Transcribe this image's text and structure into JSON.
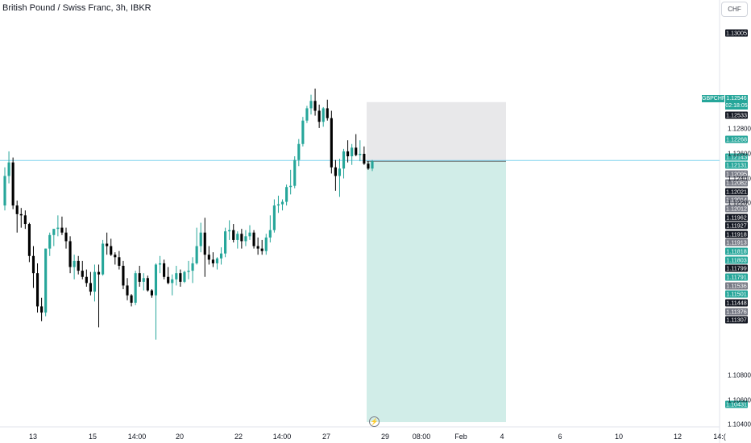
{
  "header": {
    "title": "British Pound / Swiss Franc, 3h, IBKR",
    "currency": "CHF"
  },
  "symbol_label": "GBPCHF",
  "current_price": {
    "price": "1.12546",
    "countdown": "02:18:05"
  },
  "colors": {
    "up": "#26a69a",
    "down": "#000000",
    "target_zone": "#d1ede8",
    "stop_zone": "#e8e8ea",
    "price_line": "#7ed3ee"
  },
  "icons": {
    "event": "lightning-icon"
  },
  "chart_data": {
    "type": "candlestick",
    "symbol": "GBPCHF",
    "timeframe": "3h",
    "source": "IBKR",
    "ylim": [
      1.1025,
      1.1385
    ],
    "x_tick_labels": [
      "13",
      "15",
      "14:00",
      "20",
      "22",
      "14:00",
      "27",
      "29",
      "08:00",
      "Feb",
      "4",
      "6",
      "10",
      "12",
      "14:("
    ],
    "y_tick_labels": [
      "1.12800",
      "1.12600",
      "1.12400",
      "1.12200",
      "1.10800",
      "1.10600",
      "1.10400"
    ],
    "y_labels": [
      {
        "v": "1.13005",
        "s": "dark"
      },
      {
        "v": "1.12533",
        "s": "dark"
      },
      {
        "v": "1.12268",
        "s": "green"
      },
      {
        "v": "1.12143",
        "s": "green"
      },
      {
        "v": "1.12131",
        "s": "green"
      },
      {
        "v": "1.12095",
        "s": "gray"
      },
      {
        "v": "1.12082",
        "s": "gray"
      },
      {
        "v": "1.12021",
        "s": "dark"
      },
      {
        "v": "1.12014",
        "s": "gray"
      },
      {
        "v": "1.12012",
        "s": "gray"
      },
      {
        "v": "1.11962",
        "s": "dark"
      },
      {
        "v": "1.11927",
        "s": "dark"
      },
      {
        "v": "1.11918",
        "s": "dark"
      },
      {
        "v": "1.11913",
        "s": "gray"
      },
      {
        "v": "1.11818",
        "s": "green"
      },
      {
        "v": "1.11803",
        "s": "green"
      },
      {
        "v": "1.11799",
        "s": "dark"
      },
      {
        "v": "1.11791",
        "s": "green"
      },
      {
        "v": "1.11536",
        "s": "gray"
      },
      {
        "v": "1.11501",
        "s": "green"
      },
      {
        "v": "1.11448",
        "s": "dark"
      },
      {
        "v": "1.11376",
        "s": "gray"
      },
      {
        "v": "1.11307",
        "s": "dark"
      },
      {
        "v": "1.10431",
        "s": "green"
      }
    ],
    "position": {
      "type": "short",
      "entry": 1.1254,
      "stop": 1.1302,
      "target": 1.1042
    },
    "candles": [
      [
        1.1218,
        1.1249,
        1.1214,
        1.1242
      ],
      [
        1.1242,
        1.1262,
        1.1236,
        1.1253
      ],
      [
        1.1253,
        1.1257,
        1.1215,
        1.1218
      ],
      [
        1.1218,
        1.1222,
        1.1196,
        1.1211
      ],
      [
        1.1211,
        1.1216,
        1.12,
        1.121
      ],
      [
        1.121,
        1.1214,
        1.1199,
        1.1203
      ],
      [
        1.1203,
        1.1204,
        1.1172,
        1.1177
      ],
      [
        1.1177,
        1.1185,
        1.1151,
        1.1163
      ],
      [
        1.1163,
        1.1171,
        1.1131,
        1.1136
      ],
      [
        1.1136,
        1.1143,
        1.1124,
        1.1131
      ],
      [
        1.1131,
        1.1183,
        1.1128,
        1.1183
      ],
      [
        1.1183,
        1.1196,
        1.1177,
        1.1194
      ],
      [
        1.1194,
        1.1199,
        1.1185,
        1.1199
      ],
      [
        1.1199,
        1.121,
        1.1193,
        1.12
      ],
      [
        1.12,
        1.1209,
        1.1194,
        1.1196
      ],
      [
        1.1196,
        1.12,
        1.1183,
        1.1189
      ],
      [
        1.1189,
        1.1193,
        1.1163,
        1.1168
      ],
      [
        1.1168,
        1.1178,
        1.1158,
        1.1173
      ],
      [
        1.1173,
        1.1177,
        1.1162,
        1.1165
      ],
      [
        1.1165,
        1.1173,
        1.1158,
        1.116
      ],
      [
        1.116,
        1.1166,
        1.1152,
        1.1155
      ],
      [
        1.1155,
        1.1164,
        1.1145,
        1.1148
      ],
      [
        1.1148,
        1.117,
        1.114,
        1.1164
      ],
      [
        1.1164,
        1.117,
        1.1119,
        1.1162
      ],
      [
        1.1162,
        1.119,
        1.1161,
        1.1187
      ],
      [
        1.1187,
        1.1196,
        1.1178,
        1.1185
      ],
      [
        1.1185,
        1.1191,
        1.1177,
        1.1178
      ],
      [
        1.1178,
        1.118,
        1.117,
        1.1176
      ],
      [
        1.1176,
        1.1181,
        1.1166,
        1.1169
      ],
      [
        1.1169,
        1.1173,
        1.115,
        1.1153
      ],
      [
        1.1153,
        1.1159,
        1.1141,
        1.1145
      ],
      [
        1.1145,
        1.1146,
        1.1136,
        1.1139
      ],
      [
        1.1139,
        1.1165,
        1.1137,
        1.1163
      ],
      [
        1.1163,
        1.1169,
        1.1152,
        1.1156
      ],
      [
        1.1156,
        1.1163,
        1.1149,
        1.1159
      ],
      [
        1.1159,
        1.1161,
        1.1148,
        1.1149
      ],
      [
        1.1149,
        1.115,
        1.1143,
        1.1145
      ],
      [
        1.1145,
        1.1171,
        1.1109,
        1.117
      ],
      [
        1.117,
        1.1177,
        1.1163,
        1.1171
      ],
      [
        1.1171,
        1.1174,
        1.1158,
        1.116
      ],
      [
        1.116,
        1.1168,
        1.1154,
        1.1155
      ],
      [
        1.1155,
        1.1162,
        1.1145,
        1.1158
      ],
      [
        1.1158,
        1.1169,
        1.1153,
        1.1163
      ],
      [
        1.1163,
        1.1166,
        1.1152,
        1.1156
      ],
      [
        1.1156,
        1.1165,
        1.1155,
        1.1164
      ],
      [
        1.1164,
        1.1173,
        1.1158,
        1.1165
      ],
      [
        1.1165,
        1.1176,
        1.1155,
        1.1171
      ],
      [
        1.1171,
        1.12,
        1.117,
        1.1185
      ],
      [
        1.1185,
        1.1204,
        1.118,
        1.1196
      ],
      [
        1.1196,
        1.1208,
        1.116,
        1.1178
      ],
      [
        1.1178,
        1.1185,
        1.117,
        1.1174
      ],
      [
        1.1174,
        1.118,
        1.1168,
        1.1171
      ],
      [
        1.1171,
        1.1176,
        1.1166,
        1.1175
      ],
      [
        1.1175,
        1.1184,
        1.117,
        1.1179
      ],
      [
        1.1179,
        1.12,
        1.1176,
        1.1197
      ],
      [
        1.1197,
        1.1206,
        1.119,
        1.1198
      ],
      [
        1.1198,
        1.1203,
        1.1188,
        1.119
      ],
      [
        1.119,
        1.1197,
        1.1183,
        1.1195
      ],
      [
        1.1195,
        1.1199,
        1.1183,
        1.1189
      ],
      [
        1.1189,
        1.1198,
        1.1185,
        1.1193
      ],
      [
        1.1193,
        1.1202,
        1.119,
        1.1196
      ],
      [
        1.1196,
        1.1198,
        1.1183,
        1.1185
      ],
      [
        1.1185,
        1.1192,
        1.1178,
        1.1183
      ],
      [
        1.1183,
        1.119,
        1.1178,
        1.1181
      ],
      [
        1.1181,
        1.1195,
        1.1178,
        1.1192
      ],
      [
        1.1192,
        1.121,
        1.1188,
        1.1198
      ],
      [
        1.1198,
        1.1223,
        1.1196,
        1.1218
      ],
      [
        1.1218,
        1.1226,
        1.1212,
        1.1219
      ],
      [
        1.1219,
        1.1223,
        1.1214,
        1.1221
      ],
      [
        1.1221,
        1.1235,
        1.1218,
        1.1233
      ],
      [
        1.1233,
        1.1247,
        1.1227,
        1.1234
      ],
      [
        1.1234,
        1.1258,
        1.1232,
        1.1255
      ],
      [
        1.1255,
        1.1272,
        1.125,
        1.1268
      ],
      [
        1.1268,
        1.129,
        1.1266,
        1.1287
      ],
      [
        1.1287,
        1.1299,
        1.1285,
        1.1297
      ],
      [
        1.1297,
        1.1308,
        1.1292,
        1.1303
      ],
      [
        1.1303,
        1.1313,
        1.1291,
        1.1295
      ],
      [
        1.1295,
        1.13,
        1.1281,
        1.1286
      ],
      [
        1.1286,
        1.1298,
        1.1282,
        1.1297
      ],
      [
        1.1297,
        1.1304,
        1.1287,
        1.1289
      ],
      [
        1.1289,
        1.1295,
        1.1244,
        1.1249
      ],
      [
        1.1249,
        1.1255,
        1.123,
        1.1242
      ],
      [
        1.1242,
        1.1256,
        1.1225,
        1.1248
      ],
      [
        1.1248,
        1.1264,
        1.124,
        1.1262
      ],
      [
        1.1262,
        1.1271,
        1.1253,
        1.1258
      ],
      [
        1.1258,
        1.1268,
        1.1251,
        1.1265
      ],
      [
        1.1265,
        1.1276,
        1.1258,
        1.1259
      ],
      [
        1.1259,
        1.1271,
        1.1254,
        1.126
      ],
      [
        1.126,
        1.1266,
        1.1251,
        1.1252
      ],
      [
        1.1252,
        1.1254,
        1.1247,
        1.1248
      ],
      [
        1.1248,
        1.1255,
        1.1246,
        1.1254
      ]
    ]
  }
}
